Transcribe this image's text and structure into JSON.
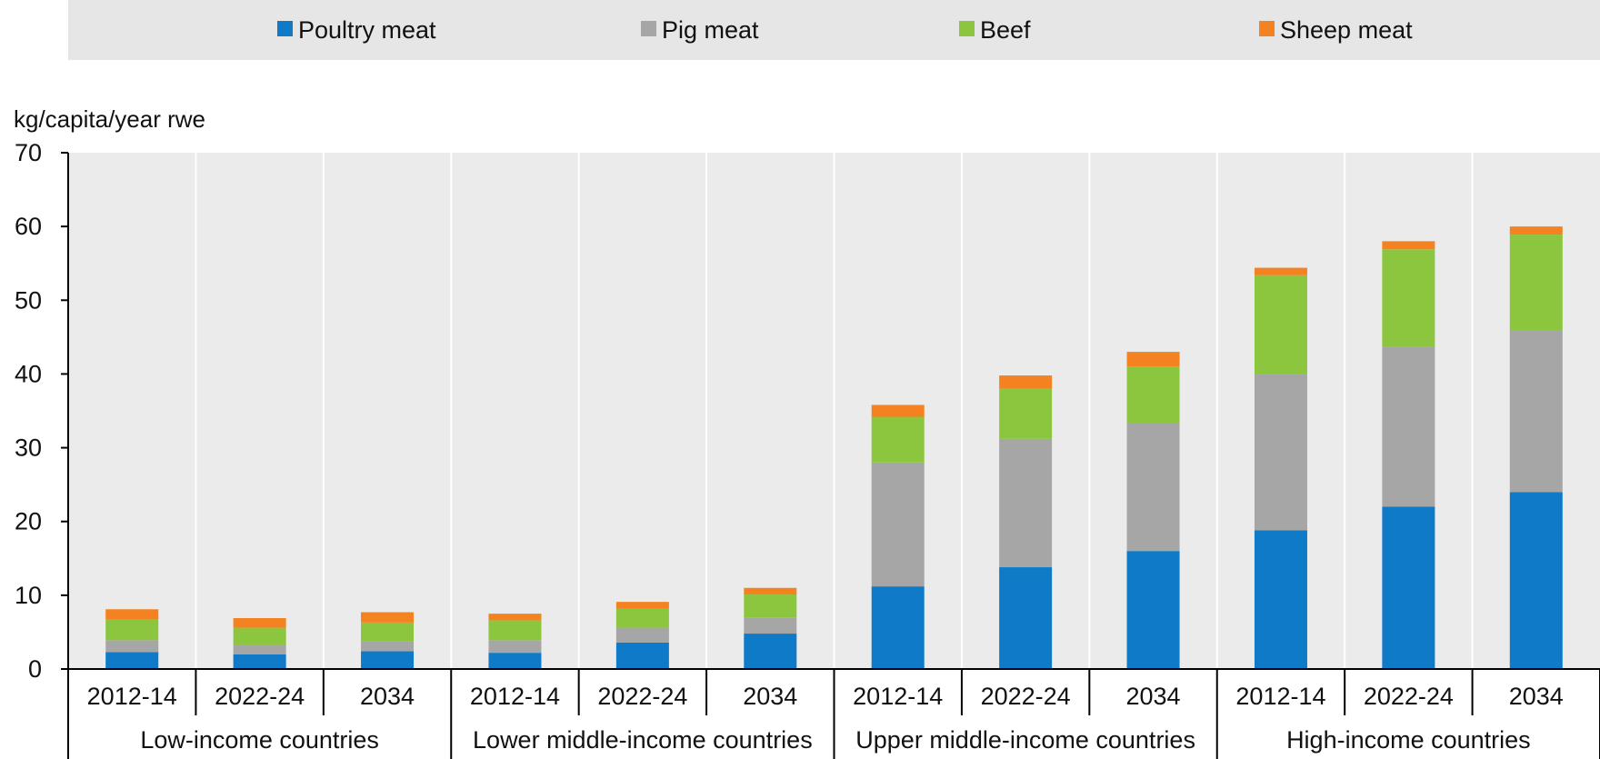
{
  "chart_data": {
    "type": "bar",
    "stacked": true,
    "unit_label": "kg/capita/year rwe",
    "ylim": [
      0,
      70
    ],
    "yticks": [
      "0",
      "10",
      "20",
      "30",
      "40",
      "50",
      "60",
      "70"
    ],
    "grid": "vertical separators between categories",
    "legend_position": "top",
    "groups": [
      {
        "label": "Low-income countries",
        "categories": [
          "2012-14",
          "2022-24",
          "2034"
        ]
      },
      {
        "label": "Lower middle-income countries",
        "categories": [
          "2012-14",
          "2022-24",
          "2034"
        ]
      },
      {
        "label": "Upper middle-income countries",
        "categories": [
          "2012-14",
          "2022-24",
          "2034"
        ]
      },
      {
        "label": "High-income countries",
        "categories": [
          "2012-14",
          "2022-24",
          "2034"
        ]
      }
    ],
    "series": [
      {
        "name": "Poultry meat",
        "color": "#0F7AC7",
        "values": [
          2.3,
          2.0,
          2.4,
          2.2,
          3.6,
          4.8,
          11.2,
          13.8,
          16.0,
          18.8,
          22.0,
          24.0
        ]
      },
      {
        "name": "Pig meat",
        "color": "#A6A6A6",
        "values": [
          1.6,
          1.2,
          1.4,
          1.7,
          2.0,
          2.2,
          16.8,
          17.4,
          17.4,
          21.2,
          21.7,
          21.9
        ]
      },
      {
        "name": "Beef",
        "color": "#8CC63F",
        "values": [
          2.8,
          2.4,
          2.5,
          2.7,
          2.6,
          3.1,
          6.2,
          6.8,
          7.6,
          13.4,
          13.2,
          13.0
        ]
      },
      {
        "name": "Sheep meat",
        "color": "#F58220",
        "values": [
          1.4,
          1.3,
          1.4,
          0.9,
          0.9,
          0.9,
          1.6,
          1.8,
          2.0,
          1.0,
          1.1,
          1.1
        ]
      }
    ]
  }
}
